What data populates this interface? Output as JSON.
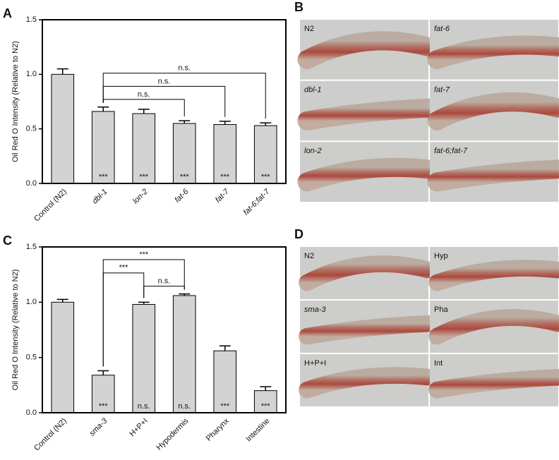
{
  "chart_data": [
    {
      "type": "bar",
      "panel_label": "A",
      "ylabel": "Oil Red O Intensity (Relative to N2)",
      "categories": [
        "Control (N2)",
        "dbl-1",
        "lon-2",
        "fat-6",
        "fat-7",
        "fat-6;fat-7"
      ],
      "italic_categories": [
        false,
        true,
        true,
        true,
        true,
        true
      ],
      "values": [
        1.0,
        0.66,
        0.64,
        0.55,
        0.54,
        0.53
      ],
      "errors": [
        0.05,
        0.04,
        0.04,
        0.025,
        0.03,
        0.025
      ],
      "color": "#d3d3d3",
      "ylim": [
        0,
        1.5
      ],
      "yticks": [
        {
          "value": 0,
          "label": "0.0"
        },
        {
          "value": 0.5,
          "label": "0.5"
        },
        {
          "value": 1,
          "label": "1.0"
        },
        {
          "value": 1.5,
          "label": "1.5"
        }
      ],
      "bar_annotations": [
        null,
        "***",
        "***",
        "***",
        "***",
        "***"
      ],
      "brackets": [
        {
          "from": "dbl-1",
          "to": "fat-6",
          "label": "n.s."
        },
        {
          "from": "dbl-1",
          "to": "fat-7",
          "label": "n.s."
        },
        {
          "from": "dbl-1",
          "to": "fat-6;fat-7",
          "label": "n.s."
        }
      ]
    },
    {
      "type": "bar",
      "panel_label": "C",
      "ylabel": "Oil Red O Intensity (Relative to N2)",
      "categories": [
        "Control (N2)",
        "sma-3",
        "H+P+I",
        "Hypodermis",
        "Pharynx",
        "Intestine"
      ],
      "italic_categories": [
        false,
        true,
        false,
        false,
        false,
        false
      ],
      "values": [
        1.0,
        0.34,
        0.98,
        1.06,
        0.56,
        0.2
      ],
      "errors": [
        0.025,
        0.04,
        0.02,
        0.015,
        0.045,
        0.035
      ],
      "color": "#d3d3d3",
      "ylim": [
        0,
        1.5
      ],
      "yticks": [
        {
          "value": 0,
          "label": "0.0"
        },
        {
          "value": 0.5,
          "label": "0.5"
        },
        {
          "value": 1,
          "label": "1.0"
        },
        {
          "value": 1.5,
          "label": "1.5"
        }
      ],
      "bar_annotations": [
        null,
        "***",
        "n.s.",
        "n.s.",
        "***",
        "***"
      ],
      "brackets": [
        {
          "from": "H+P+I",
          "to": "Hypodermis",
          "label": "n.s."
        },
        {
          "from": "sma-3",
          "to": "H+P+I",
          "label": "***"
        },
        {
          "from": "sma-3",
          "to": "Hypodermis",
          "label": "***"
        }
      ]
    }
  ],
  "image_panels": [
    {
      "panel_label": "B",
      "captions": [
        "N2",
        "fat-6",
        "dbl-1",
        "fat-7",
        "lon-2",
        "fat-6;fat-7"
      ],
      "italic": [
        false,
        true,
        true,
        true,
        true,
        true
      ]
    },
    {
      "panel_label": "D",
      "captions": [
        "N2",
        "Hyp",
        "sma-3",
        "Pha",
        "H+P+I",
        "Int"
      ],
      "italic": [
        false,
        false,
        true,
        false,
        false,
        false
      ]
    }
  ]
}
